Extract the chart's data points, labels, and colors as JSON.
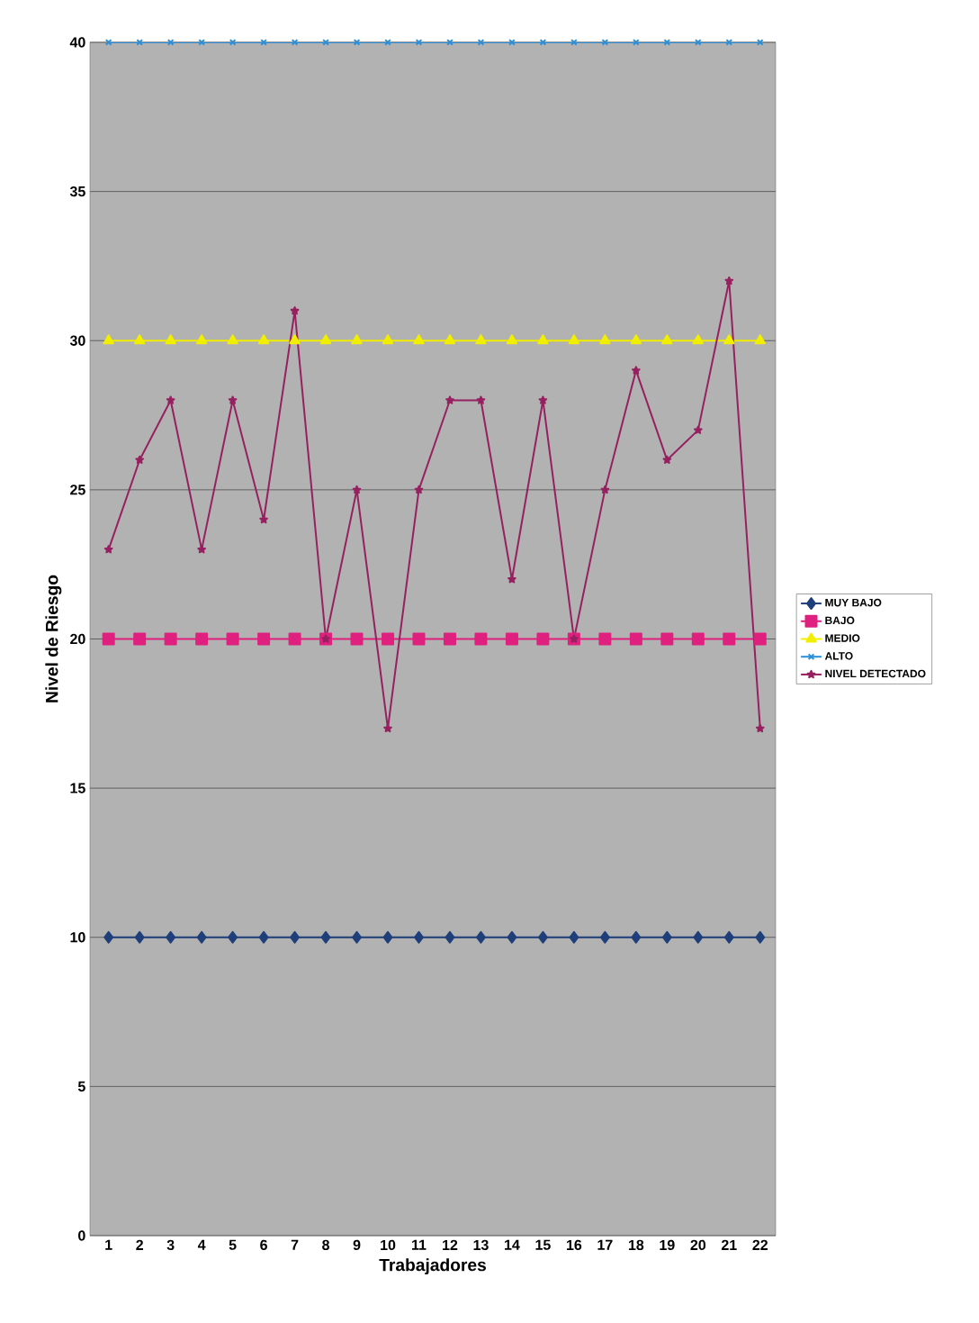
{
  "chart_data": {
    "type": "line",
    "xlabel": "Trabajadores",
    "ylabel": "Nivel de Riesgo",
    "categories": [
      "1",
      "2",
      "3",
      "4",
      "5",
      "6",
      "7",
      "8",
      "9",
      "10",
      "11",
      "12",
      "13",
      "14",
      "15",
      "16",
      "17",
      "18",
      "19",
      "20",
      "21",
      "22"
    ],
    "ylim": [
      0,
      40
    ],
    "yticks": [
      0,
      5,
      10,
      15,
      20,
      25,
      30,
      35,
      40
    ],
    "grid": "y",
    "legend": "right",
    "series": [
      {
        "name": "MUY BAJO",
        "color": "#1f3f7a",
        "marker": "diamond",
        "values": [
          10,
          10,
          10,
          10,
          10,
          10,
          10,
          10,
          10,
          10,
          10,
          10,
          10,
          10,
          10,
          10,
          10,
          10,
          10,
          10,
          10,
          10
        ]
      },
      {
        "name": "BAJO",
        "color": "#e0207f",
        "marker": "square",
        "values": [
          20,
          20,
          20,
          20,
          20,
          20,
          20,
          20,
          20,
          20,
          20,
          20,
          20,
          20,
          20,
          20,
          20,
          20,
          20,
          20,
          20,
          20
        ]
      },
      {
        "name": "MEDIO",
        "color": "#f2ee00",
        "marker": "triangle",
        "values": [
          30,
          30,
          30,
          30,
          30,
          30,
          30,
          30,
          30,
          30,
          30,
          30,
          30,
          30,
          30,
          30,
          30,
          30,
          30,
          30,
          30,
          30
        ]
      },
      {
        "name": "ALTO",
        "color": "#2a8fd8",
        "marker": "cross",
        "values": [
          40,
          40,
          40,
          40,
          40,
          40,
          40,
          40,
          40,
          40,
          40,
          40,
          40,
          40,
          40,
          40,
          40,
          40,
          40,
          40,
          40,
          40
        ]
      },
      {
        "name": "NIVEL DETECTADO",
        "color": "#962060",
        "marker": "star",
        "values": [
          23,
          26,
          28,
          23,
          28,
          24,
          31,
          20,
          25,
          17,
          25,
          28,
          28,
          22,
          28,
          20,
          25,
          29,
          26,
          27,
          32,
          17
        ]
      }
    ]
  }
}
